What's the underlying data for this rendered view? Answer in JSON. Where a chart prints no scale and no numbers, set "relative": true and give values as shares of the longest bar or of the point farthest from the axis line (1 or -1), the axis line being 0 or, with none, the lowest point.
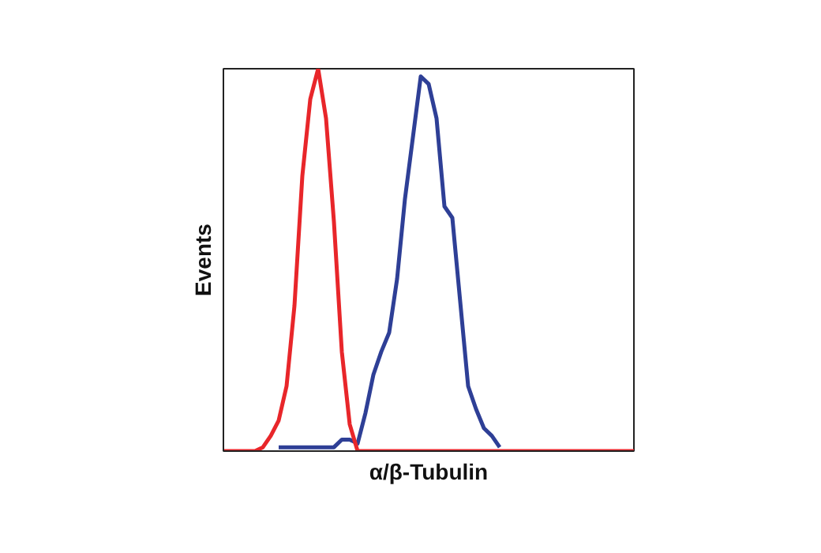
{
  "chart_data": {
    "type": "line",
    "relative": true,
    "xlabel": "α/β-Tubulin",
    "ylabel": "Events",
    "categories": [
      null,
      null,
      null,
      null,
      null,
      null,
      null,
      null,
      null,
      null,
      null,
      null,
      null,
      null,
      null,
      null,
      null,
      null,
      null,
      null,
      null,
      null,
      null,
      null,
      null,
      null,
      null,
      null,
      null,
      null,
      null,
      null,
      null,
      null,
      null,
      null,
      null,
      null,
      null,
      null,
      null,
      null,
      null,
      null,
      null,
      null,
      null,
      null,
      null,
      null,
      null,
      null,
      null
    ],
    "series": [
      {
        "color": "#2e3f96",
        "values": [
          null,
          null,
          null,
          null,
          null,
          null,
          null,
          0.01,
          0.01,
          0.01,
          0.01,
          0.01,
          0.01,
          0.01,
          0.01,
          0.03,
          0.03,
          0.02,
          0.1,
          0.2,
          0.26,
          0.31,
          0.45,
          0.66,
          0.82,
          0.98,
          0.96,
          0.87,
          0.64,
          0.61,
          0.39,
          0.17,
          0.11,
          0.06,
          0.04,
          0.01,
          null,
          null,
          null,
          null,
          null,
          null,
          null,
          null,
          null,
          null,
          null,
          null,
          null,
          null,
          null,
          null,
          null
        ]
      },
      {
        "color": "#e8262a",
        "values": [
          0,
          0,
          0,
          0,
          0,
          0.01,
          0.04,
          0.08,
          0.17,
          0.38,
          0.72,
          0.92,
          1,
          0.87,
          0.6,
          0.26,
          0.07,
          0,
          0,
          0,
          0,
          0,
          0,
          0,
          0,
          0,
          0,
          0,
          0,
          0,
          0,
          0,
          0,
          0,
          0,
          0,
          0,
          0,
          0,
          0,
          0,
          0,
          0,
          0,
          0,
          0,
          0,
          0,
          0,
          0,
          0,
          0,
          0
        ]
      }
    ]
  }
}
